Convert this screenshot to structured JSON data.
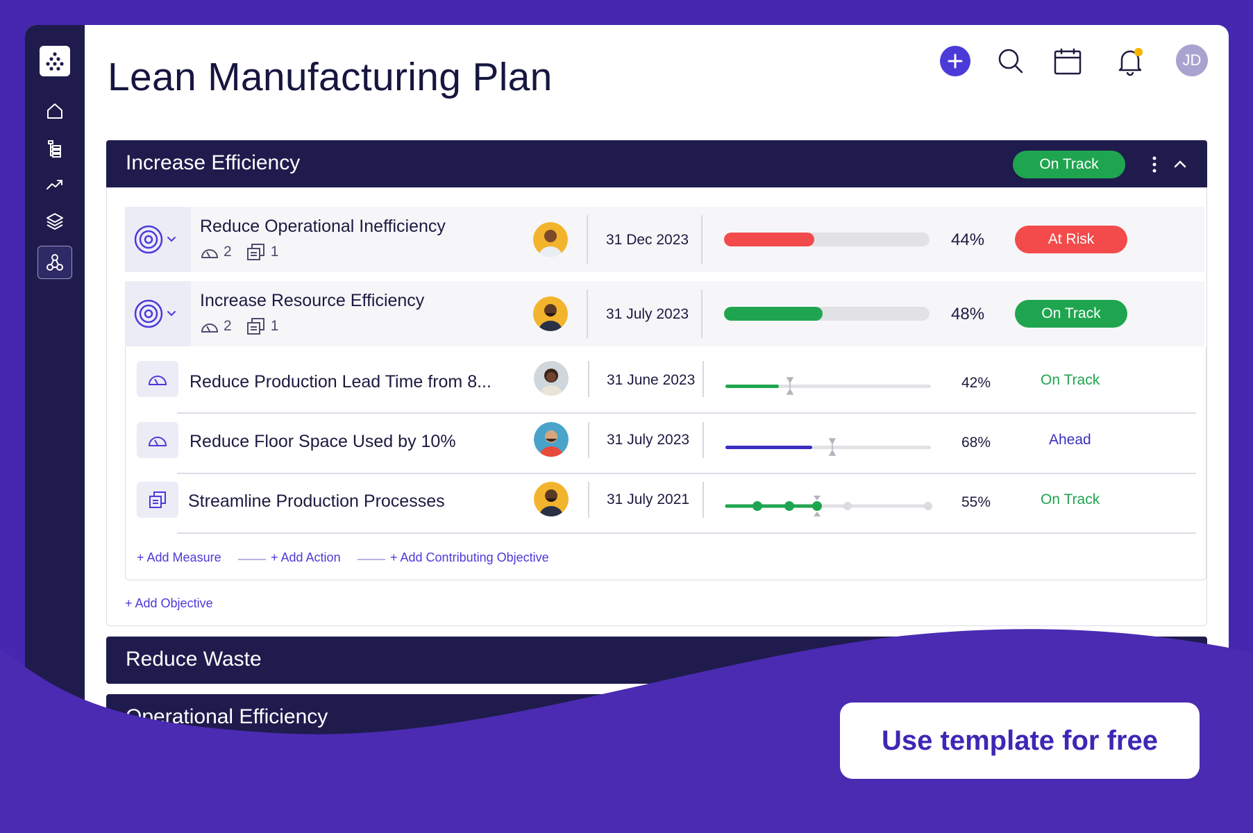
{
  "page": {
    "title": "Lean Manufacturing Plan"
  },
  "topbar": {
    "avatar_initials": "JD",
    "colors": {
      "add": "#4a3ad8",
      "notification_dot": "#f5b400"
    }
  },
  "sidebar": {
    "items": [
      {
        "icon": "home-icon"
      },
      {
        "icon": "list-tree-icon"
      },
      {
        "icon": "trend-icon"
      },
      {
        "icon": "layers-icon"
      },
      {
        "icon": "hierarchy-icon",
        "active": true
      }
    ]
  },
  "section": {
    "title": "Increase Efficiency",
    "status": "On Track",
    "objectives": [
      {
        "title": "Reduce Operational Inefficiency",
        "measures": "2",
        "actions": "1",
        "date": "31 Dec 2023",
        "progress": 44,
        "progress_label": "44%",
        "status": "At Risk",
        "status_color": "#f34b4b"
      },
      {
        "title": "Increase Resource Efficiency",
        "measures": "2",
        "actions": "1",
        "date": "31 July 2023",
        "progress": 48,
        "progress_label": "48%",
        "status": "On Track",
        "status_color": "#1fa54f"
      }
    ],
    "key_results": [
      {
        "title": "Reduce Production Lead Time from 8...",
        "date": "31 June 2023",
        "progress": 42,
        "progress_label": "42%",
        "status": "On Track",
        "status_color": "#1fa54f"
      },
      {
        "title": "Reduce Floor Space Used by 10%",
        "date": "31 July 2023",
        "progress": 68,
        "progress_label": "68%",
        "status": "Ahead",
        "status_color": "#3a2fc0"
      },
      {
        "title": "Streamline Production Processes",
        "date": "31 July 2021",
        "progress": 55,
        "progress_label": "55%",
        "status": "On Track",
        "status_color": "#1fa54f"
      }
    ],
    "add_links": {
      "measure": "+ Add Measure",
      "action": "+ Add Action",
      "contributing": "+ Add Contributing Objective",
      "objective": "+ Add Objective"
    }
  },
  "collapsed_sections": [
    "Reduce Waste",
    "Operational Efficiency"
  ],
  "cta": {
    "label": "Use template for free"
  }
}
